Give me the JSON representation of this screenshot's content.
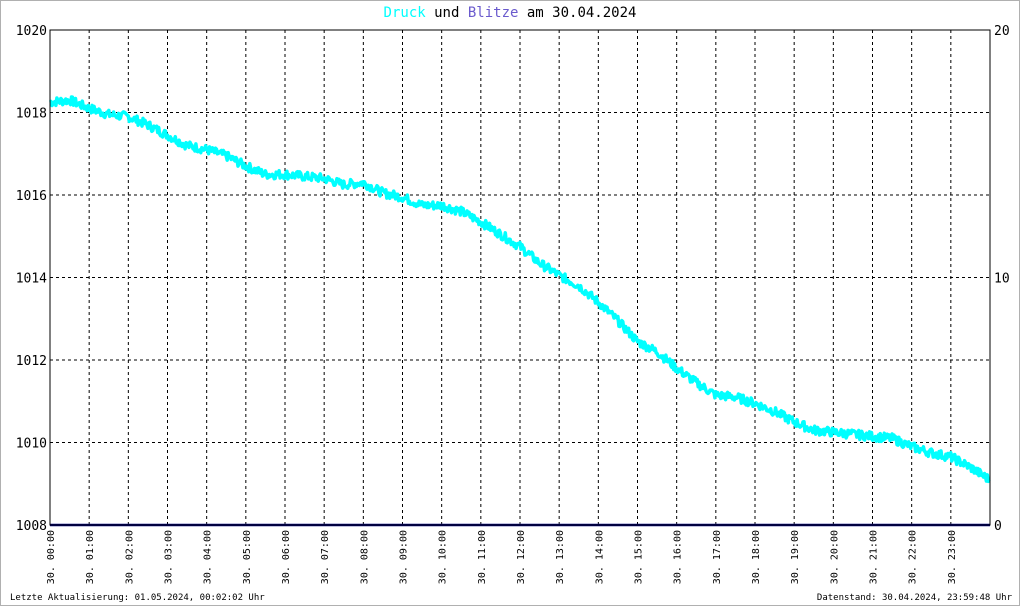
{
  "title": {
    "series1": "Druck",
    "joiner": " und ",
    "series2": "Blitze",
    "suffix": " am 30.04.2024"
  },
  "colors": {
    "druck": "#00ffff",
    "blitze": "#6a5acd",
    "baseline": "#000080",
    "grid": "#000000"
  },
  "footer": {
    "left": "Letzte Aktualisierung: 01.05.2024, 00:02:02 Uhr",
    "right": "Datenstand: 30.04.2024, 23:59:48 Uhr"
  },
  "chart_data": {
    "type": "line",
    "title": "Druck und Blitze am 30.04.2024",
    "xlabel": "",
    "ylabel": "",
    "y_left_lim": [
      1008,
      1020
    ],
    "y_left_ticks": [
      1008,
      1010,
      1012,
      1014,
      1016,
      1018,
      1020
    ],
    "y_right_lim": [
      0,
      20
    ],
    "y_right_ticks": [
      0,
      10,
      20
    ],
    "x_lim": [
      0,
      24
    ],
    "x_tick_labels": [
      "30. 00:00",
      "30. 01:00",
      "30. 02:00",
      "30. 03:00",
      "30. 04:00",
      "30. 05:00",
      "30. 06:00",
      "30. 07:00",
      "30. 08:00",
      "30. 09:00",
      "30. 10:00",
      "30. 11:00",
      "30. 12:00",
      "30. 13:00",
      "30. 14:00",
      "30. 15:00",
      "30. 16:00",
      "30. 17:00",
      "30. 18:00",
      "30. 19:00",
      "30. 20:00",
      "30. 21:00",
      "30. 22:00",
      "30. 23:00"
    ],
    "grid": true,
    "series": [
      {
        "name": "Druck",
        "axis": "left",
        "color": "#00ffff",
        "x": [
          0.0,
          0.5,
          1.0,
          1.5,
          2.0,
          2.5,
          3.0,
          3.5,
          4.0,
          4.5,
          5.0,
          5.5,
          6.0,
          6.5,
          7.0,
          7.5,
          8.0,
          8.5,
          9.0,
          9.5,
          10.0,
          10.5,
          11.0,
          11.5,
          12.0,
          12.5,
          13.0,
          13.5,
          14.0,
          14.5,
          15.0,
          15.5,
          16.0,
          16.5,
          17.0,
          17.5,
          18.0,
          18.5,
          19.0,
          19.5,
          20.0,
          20.5,
          21.0,
          21.5,
          22.0,
          22.5,
          23.0,
          23.5,
          23.98
        ],
        "values": [
          1018.25,
          1018.3,
          1018.1,
          1017.95,
          1017.9,
          1017.7,
          1017.45,
          1017.2,
          1017.1,
          1016.95,
          1016.7,
          1016.5,
          1016.5,
          1016.45,
          1016.4,
          1016.25,
          1016.3,
          1016.05,
          1015.95,
          1015.75,
          1015.75,
          1015.6,
          1015.35,
          1015.05,
          1014.75,
          1014.35,
          1014.05,
          1013.8,
          1013.4,
          1012.95,
          1012.45,
          1012.2,
          1011.8,
          1011.45,
          1011.15,
          1011.1,
          1010.95,
          1010.75,
          1010.5,
          1010.3,
          1010.25,
          1010.2,
          1010.15,
          1010.1,
          1009.9,
          1009.75,
          1009.65,
          1009.4,
          1009.1
        ]
      },
      {
        "name": "Blitze",
        "axis": "right",
        "color": "#000080",
        "x": [
          0,
          24
        ],
        "values": [
          0,
          0
        ]
      }
    ]
  }
}
